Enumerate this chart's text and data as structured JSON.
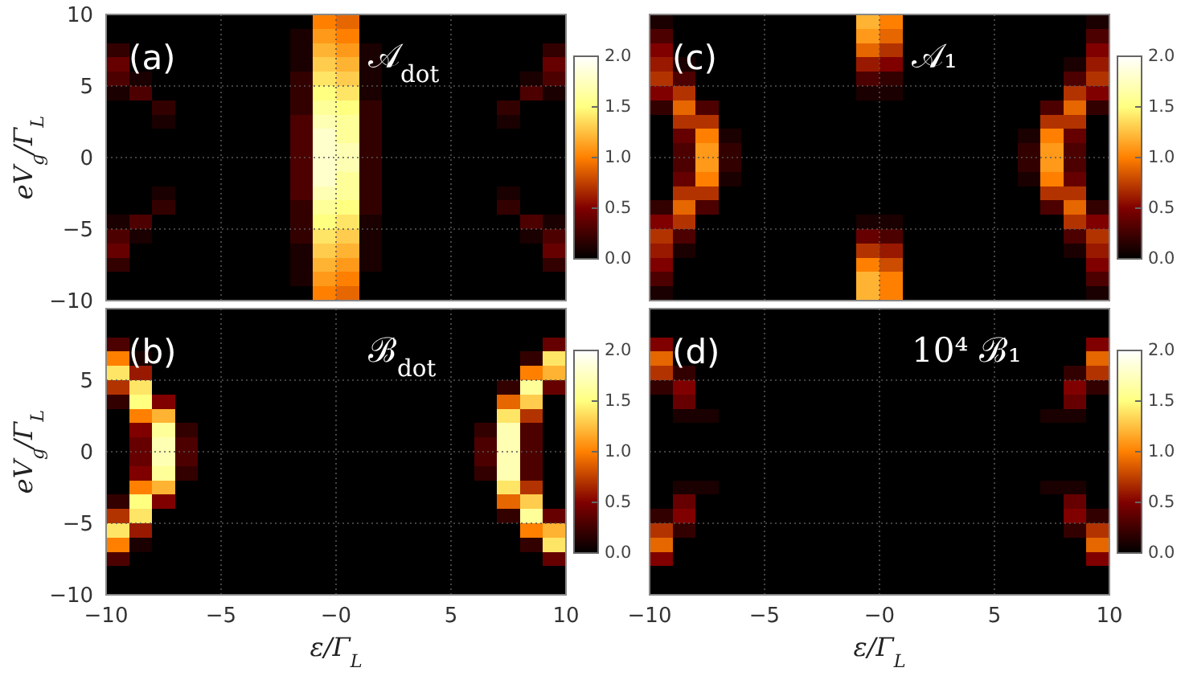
{
  "chart_data": [
    {
      "type": "heatmap",
      "title": "𝒜$_{dot}$",
      "annotations": [
        "(a)"
      ],
      "ylabel": "eV$_{g}$/Γ$_{L}$",
      "x": [
        -9.5,
        -8.5,
        -7.5,
        -6.5,
        -5.5,
        -4.5,
        -3.5,
        -2.5,
        -1.5,
        -0.5,
        0.5,
        1.5,
        2.5,
        3.5,
        4.5,
        5.5,
        6.5,
        7.5,
        8.5,
        9.5
      ],
      "cells": [
        [
          0,
          0,
          0,
          0,
          0,
          0,
          0,
          0,
          0,
          1.0,
          0.9,
          0,
          0,
          0,
          0,
          0,
          0,
          0,
          0,
          0
        ],
        [
          0,
          0,
          0,
          0,
          0,
          0,
          0,
          0,
          0.1,
          1.1,
          1.0,
          0,
          0,
          0,
          0,
          0,
          0,
          0,
          0,
          0
        ],
        [
          0.2,
          0,
          0,
          0,
          0,
          0,
          0,
          0,
          0.1,
          1.2,
          1.1,
          0.1,
          0,
          0,
          0,
          0,
          0,
          0,
          0,
          0.2
        ],
        [
          0.4,
          0,
          0,
          0,
          0,
          0,
          0,
          0,
          0.1,
          1.3,
          1.2,
          0.1,
          0,
          0,
          0,
          0,
          0,
          0,
          0,
          0.4
        ],
        [
          0.3,
          0.1,
          0,
          0,
          0,
          0,
          0,
          0,
          0.2,
          1.4,
          1.3,
          0.1,
          0,
          0,
          0,
          0,
          0,
          0,
          0.1,
          0.3
        ],
        [
          0.1,
          0.3,
          0,
          0,
          0,
          0,
          0,
          0,
          0.2,
          1.5,
          1.4,
          0.1,
          0,
          0,
          0,
          0,
          0,
          0,
          0.3,
          0.1
        ],
        [
          0,
          0,
          0.2,
          0,
          0,
          0,
          0,
          0,
          0.2,
          1.6,
          1.5,
          0.2,
          0,
          0,
          0,
          0,
          0,
          0.2,
          0,
          0
        ],
        [
          0,
          0,
          0.1,
          0,
          0,
          0,
          0,
          0,
          0.3,
          1.7,
          1.6,
          0.2,
          0,
          0,
          0,
          0,
          0,
          0.1,
          0,
          0
        ],
        [
          0,
          0,
          0,
          0,
          0,
          0,
          0,
          0,
          0.3,
          1.8,
          1.6,
          0.2,
          0,
          0,
          0,
          0,
          0,
          0,
          0,
          0
        ],
        [
          0,
          0,
          0,
          0,
          0,
          0,
          0,
          0,
          0.3,
          1.8,
          1.7,
          0.2,
          0,
          0,
          0,
          0,
          0,
          0,
          0,
          0
        ],
        [
          0,
          0,
          0,
          0,
          0,
          0,
          0,
          0,
          0.3,
          1.8,
          1.7,
          0.2,
          0,
          0,
          0,
          0,
          0,
          0,
          0,
          0
        ],
        [
          0,
          0,
          0,
          0,
          0,
          0,
          0,
          0,
          0.3,
          1.8,
          1.6,
          0.2,
          0,
          0,
          0,
          0,
          0,
          0,
          0,
          0
        ],
        [
          0,
          0,
          0.1,
          0,
          0,
          0,
          0,
          0,
          0.3,
          1.7,
          1.6,
          0.2,
          0,
          0,
          0,
          0,
          0,
          0.1,
          0,
          0
        ],
        [
          0,
          0,
          0.2,
          0,
          0,
          0,
          0,
          0,
          0.2,
          1.6,
          1.5,
          0.2,
          0,
          0,
          0,
          0,
          0,
          0.2,
          0,
          0
        ],
        [
          0.1,
          0.3,
          0,
          0,
          0,
          0,
          0,
          0,
          0.2,
          1.5,
          1.4,
          0.1,
          0,
          0,
          0,
          0,
          0,
          0,
          0.3,
          0.1
        ],
        [
          0.3,
          0.1,
          0,
          0,
          0,
          0,
          0,
          0,
          0.2,
          1.4,
          1.3,
          0.1,
          0,
          0,
          0,
          0,
          0,
          0,
          0.1,
          0.3
        ],
        [
          0.4,
          0,
          0,
          0,
          0,
          0,
          0,
          0,
          0.1,
          1.3,
          1.2,
          0.1,
          0,
          0,
          0,
          0,
          0,
          0,
          0,
          0.4
        ],
        [
          0.2,
          0,
          0,
          0,
          0,
          0,
          0,
          0,
          0.1,
          1.2,
          1.1,
          0.1,
          0,
          0,
          0,
          0,
          0,
          0,
          0,
          0.2
        ],
        [
          0,
          0,
          0,
          0,
          0,
          0,
          0,
          0,
          0.1,
          1.1,
          1.0,
          0,
          0,
          0,
          0,
          0,
          0,
          0,
          0,
          0
        ],
        [
          0,
          0,
          0,
          0,
          0,
          0,
          0,
          0,
          0,
          1.0,
          0.9,
          0,
          0,
          0,
          0,
          0,
          0,
          0,
          0,
          0
        ]
      ],
      "clim": [
        0,
        2
      ],
      "cticks": [
        {
          "value": 0,
          "label": "0.0"
        },
        {
          "value": 0.5,
          "label": "0.5"
        },
        {
          "value": 1,
          "label": "1.0"
        },
        {
          "value": 1.5,
          "label": "1.5"
        },
        {
          "value": 2,
          "label": "2.0"
        }
      ],
      "xlim": [
        -10,
        10
      ],
      "xticks": [
        -10,
        -5,
        0,
        5,
        10
      ],
      "ylim": [
        -10,
        10
      ],
      "yticks": [
        -10,
        -5,
        0,
        5,
        10
      ],
      "grid": true,
      "tick_labels": "y"
    },
    {
      "type": "heatmap",
      "title": "𝒜₁",
      "annotations": [
        "(c)"
      ],
      "x": [
        -9.5,
        -8.5,
        -7.5,
        -6.5,
        -5.5,
        -4.5,
        -3.5,
        -2.5,
        -1.5,
        -0.5,
        0.5,
        1.5,
        2.5,
        3.5,
        4.5,
        5.5,
        6.5,
        7.5,
        8.5,
        9.5
      ],
      "cells": [
        [
          0.1,
          0,
          0,
          0,
          0,
          0,
          0,
          0,
          0,
          1.2,
          1.0,
          0,
          0,
          0,
          0,
          0,
          0,
          0,
          0,
          0.1
        ],
        [
          0.3,
          0,
          0,
          0,
          0,
          0,
          0,
          0,
          0,
          1.1,
          0.9,
          0,
          0,
          0,
          0,
          0,
          0,
          0,
          0,
          0.3
        ],
        [
          0.5,
          0,
          0,
          0,
          0,
          0,
          0,
          0,
          0,
          0.9,
          0.7,
          0,
          0,
          0,
          0,
          0,
          0,
          0,
          0,
          0.5
        ],
        [
          0.6,
          0.1,
          0,
          0,
          0,
          0,
          0,
          0,
          0,
          0.6,
          0.5,
          0,
          0,
          0,
          0,
          0,
          0,
          0,
          0.1,
          0.6
        ],
        [
          0.7,
          0.3,
          0,
          0,
          0,
          0,
          0,
          0,
          0,
          0.3,
          0.2,
          0,
          0,
          0,
          0,
          0,
          0,
          0,
          0.3,
          0.7
        ],
        [
          0.5,
          0.7,
          0,
          0,
          0,
          0,
          0,
          0,
          0,
          0.1,
          0.1,
          0,
          0,
          0,
          0,
          0,
          0,
          0,
          0.7,
          0.5
        ],
        [
          0.2,
          0.9,
          0.3,
          0,
          0,
          0,
          0,
          0,
          0,
          0,
          0,
          0,
          0,
          0,
          0,
          0,
          0,
          0.3,
          0.9,
          0.2
        ],
        [
          0,
          0.7,
          0.7,
          0,
          0,
          0,
          0,
          0,
          0,
          0,
          0,
          0,
          0,
          0,
          0,
          0,
          0,
          0.7,
          0.7,
          0
        ],
        [
          0,
          0.4,
          1.0,
          0.1,
          0,
          0,
          0,
          0,
          0,
          0,
          0,
          0,
          0,
          0,
          0,
          0,
          0.1,
          1.0,
          0.4,
          0
        ],
        [
          0,
          0.3,
          1.1,
          0.2,
          0,
          0,
          0,
          0,
          0,
          0,
          0,
          0,
          0,
          0,
          0,
          0,
          0.2,
          1.1,
          0.3,
          0
        ],
        [
          0,
          0.3,
          1.1,
          0.2,
          0,
          0,
          0,
          0,
          0,
          0,
          0,
          0,
          0,
          0,
          0,
          0,
          0.2,
          1.1,
          0.3,
          0
        ],
        [
          0,
          0.4,
          1.0,
          0.1,
          0,
          0,
          0,
          0,
          0,
          0,
          0,
          0,
          0,
          0,
          0,
          0,
          0.1,
          1.0,
          0.4,
          0
        ],
        [
          0,
          0.7,
          0.7,
          0,
          0,
          0,
          0,
          0,
          0,
          0,
          0,
          0,
          0,
          0,
          0,
          0,
          0,
          0.7,
          0.7,
          0
        ],
        [
          0.2,
          0.9,
          0.3,
          0,
          0,
          0,
          0,
          0,
          0,
          0,
          0,
          0,
          0,
          0,
          0,
          0,
          0,
          0.3,
          0.9,
          0.2
        ],
        [
          0.5,
          0.7,
          0,
          0,
          0,
          0,
          0,
          0,
          0,
          0.1,
          0.1,
          0,
          0,
          0,
          0,
          0,
          0,
          0,
          0.7,
          0.5
        ],
        [
          0.7,
          0.3,
          0,
          0,
          0,
          0,
          0,
          0,
          0,
          0.4,
          0.3,
          0,
          0,
          0,
          0,
          0,
          0,
          0,
          0.3,
          0.7
        ],
        [
          0.6,
          0.1,
          0,
          0,
          0,
          0,
          0,
          0,
          0,
          0.7,
          0.6,
          0,
          0,
          0,
          0,
          0,
          0,
          0,
          0.1,
          0.6
        ],
        [
          0.5,
          0,
          0,
          0,
          0,
          0,
          0,
          0,
          0,
          1.0,
          0.8,
          0,
          0,
          0,
          0,
          0,
          0,
          0,
          0,
          0.5
        ],
        [
          0.3,
          0,
          0,
          0,
          0,
          0,
          0,
          0,
          0,
          1.2,
          1.0,
          0,
          0,
          0,
          0,
          0,
          0,
          0,
          0,
          0.3
        ],
        [
          0.1,
          0,
          0,
          0,
          0,
          0,
          0,
          0,
          0,
          1.2,
          1.0,
          0,
          0,
          0,
          0,
          0,
          0,
          0,
          0,
          0.1
        ]
      ],
      "clim": [
        0,
        2
      ],
      "cticks": [
        {
          "value": 0,
          "label": "0.0"
        },
        {
          "value": 0.5,
          "label": "0.5"
        },
        {
          "value": 1,
          "label": "1.0"
        },
        {
          "value": 1.5,
          "label": "1.5"
        },
        {
          "value": 2,
          "label": "2.0"
        }
      ],
      "xlim": [
        -10,
        10
      ],
      "xticks": [
        -10,
        -5,
        0,
        5,
        10
      ],
      "ylim": [
        -10,
        10
      ],
      "yticks": [
        -10,
        -5,
        0,
        5,
        10
      ],
      "grid": true,
      "tick_labels": false
    },
    {
      "type": "heatmap",
      "title": "ℬ$_{dot}$",
      "annotations": [
        "(b)"
      ],
      "xlabel": "ε/Γ$_{L}$",
      "ylabel": "eV$_{g}$/Γ$_{L}$",
      "x": [
        -9.5,
        -8.5,
        -7.5,
        -6.5,
        -5.5,
        -4.5,
        -3.5,
        -2.5,
        -1.5,
        -0.5,
        0.5,
        1.5,
        2.5,
        3.5,
        4.5,
        5.5,
        6.5,
        7.5,
        8.5,
        9.5
      ],
      "cells": [
        [
          0,
          0,
          0,
          0,
          0,
          0,
          0,
          0,
          0,
          0,
          0,
          0,
          0,
          0,
          0,
          0,
          0,
          0,
          0,
          0
        ],
        [
          0,
          0,
          0,
          0,
          0,
          0,
          0,
          0,
          0,
          0,
          0,
          0,
          0,
          0,
          0,
          0,
          0,
          0,
          0,
          0
        ],
        [
          0.3,
          0,
          0,
          0,
          0,
          0,
          0,
          0,
          0,
          0,
          0,
          0,
          0,
          0,
          0,
          0,
          0,
          0,
          0,
          0.4
        ],
        [
          1.0,
          0.1,
          0,
          0,
          0,
          0,
          0,
          0,
          0,
          0,
          0,
          0,
          0,
          0,
          0,
          0,
          0,
          0,
          0.2,
          1.4
        ],
        [
          1.4,
          0.6,
          0,
          0,
          0,
          0,
          0,
          0,
          0,
          0,
          0,
          0,
          0,
          0,
          0,
          0,
          0,
          0,
          1.0,
          1.2
        ],
        [
          0.7,
          1.4,
          0,
          0,
          0,
          0,
          0,
          0,
          0,
          0,
          0,
          0,
          0,
          0,
          0,
          0,
          0,
          0.2,
          1.6,
          0.4
        ],
        [
          0.2,
          1.5,
          0.5,
          0,
          0,
          0,
          0,
          0,
          0,
          0,
          0,
          0,
          0,
          0,
          0,
          0,
          0,
          0.9,
          1.3,
          0
        ],
        [
          0,
          1.0,
          1.2,
          0,
          0,
          0,
          0,
          0,
          0,
          0,
          0,
          0,
          0,
          0,
          0,
          0,
          0,
          1.4,
          0.7,
          0
        ],
        [
          0,
          0.5,
          1.6,
          0.2,
          0,
          0,
          0,
          0,
          0,
          0,
          0,
          0,
          0,
          0,
          0,
          0,
          0.2,
          1.7,
          0.3,
          0
        ],
        [
          0,
          0.4,
          1.7,
          0.3,
          0,
          0,
          0,
          0,
          0,
          0,
          0,
          0,
          0,
          0,
          0,
          0,
          0.3,
          1.7,
          0.3,
          0
        ],
        [
          0,
          0.4,
          1.7,
          0.3,
          0,
          0,
          0,
          0,
          0,
          0,
          0,
          0,
          0,
          0,
          0,
          0,
          0.3,
          1.7,
          0.3,
          0
        ],
        [
          0,
          0.5,
          1.6,
          0.2,
          0,
          0,
          0,
          0,
          0,
          0,
          0,
          0,
          0,
          0,
          0,
          0,
          0.2,
          1.7,
          0.3,
          0
        ],
        [
          0,
          1.0,
          1.2,
          0,
          0,
          0,
          0,
          0,
          0,
          0,
          0,
          0,
          0,
          0,
          0,
          0,
          0,
          1.4,
          0.7,
          0
        ],
        [
          0.2,
          1.5,
          0.5,
          0,
          0,
          0,
          0,
          0,
          0,
          0,
          0,
          0,
          0,
          0,
          0,
          0,
          0,
          0.9,
          1.3,
          0
        ],
        [
          0.7,
          1.4,
          0,
          0,
          0,
          0,
          0,
          0,
          0,
          0,
          0,
          0,
          0,
          0,
          0,
          0,
          0,
          0.2,
          1.6,
          0.4
        ],
        [
          1.4,
          0.6,
          0,
          0,
          0,
          0,
          0,
          0,
          0,
          0,
          0,
          0,
          0,
          0,
          0,
          0,
          0,
          0,
          1.0,
          1.2
        ],
        [
          1.0,
          0.1,
          0,
          0,
          0,
          0,
          0,
          0,
          0,
          0,
          0,
          0,
          0,
          0,
          0,
          0,
          0,
          0,
          0.2,
          1.4
        ],
        [
          0.3,
          0,
          0,
          0,
          0,
          0,
          0,
          0,
          0,
          0,
          0,
          0,
          0,
          0,
          0,
          0,
          0,
          0,
          0,
          0.4
        ],
        [
          0,
          0,
          0,
          0,
          0,
          0,
          0,
          0,
          0,
          0,
          0,
          0,
          0,
          0,
          0,
          0,
          0,
          0,
          0,
          0
        ],
        [
          0,
          0,
          0,
          0,
          0,
          0,
          0,
          0,
          0,
          0,
          0,
          0,
          0,
          0,
          0,
          0,
          0,
          0,
          0,
          0
        ]
      ],
      "clim": [
        0,
        2
      ],
      "cticks": [
        {
          "value": 0,
          "label": "0.0"
        },
        {
          "value": 0.5,
          "label": "0.5"
        },
        {
          "value": 1,
          "label": "1.0"
        },
        {
          "value": 1.5,
          "label": "1.5"
        },
        {
          "value": 2,
          "label": "2.0"
        }
      ],
      "xlim": [
        -10,
        10
      ],
      "xticks": [
        -10,
        -5,
        {
          "value": 0,
          "label": "−0"
        },
        5,
        10
      ],
      "ylim": [
        -10,
        10
      ],
      "yticks": [
        -10,
        -5,
        0,
        5
      ],
      "grid": true
    },
    {
      "type": "heatmap",
      "title": "10⁴ ℬ₁",
      "annotations": [
        "(d)"
      ],
      "xlabel": "ε/Γ$_{L}$",
      "x": [
        -9.5,
        -8.5,
        -7.5,
        -6.5,
        -5.5,
        -4.5,
        -3.5,
        -2.5,
        -1.5,
        -0.5,
        0.5,
        1.5,
        2.5,
        3.5,
        4.5,
        5.5,
        6.5,
        7.5,
        8.5,
        9.5
      ],
      "cells": [
        [
          0,
          0,
          0,
          0,
          0,
          0,
          0,
          0,
          0,
          0,
          0,
          0,
          0,
          0,
          0,
          0,
          0,
          0,
          0,
          0
        ],
        [
          0,
          0,
          0,
          0,
          0,
          0,
          0,
          0,
          0,
          0,
          0,
          0,
          0,
          0,
          0,
          0,
          0,
          0,
          0,
          0
        ],
        [
          0.5,
          0,
          0,
          0,
          0,
          0,
          0,
          0,
          0,
          0,
          0,
          0,
          0,
          0,
          0,
          0,
          0,
          0,
          0,
          0.5
        ],
        [
          0.9,
          0,
          0,
          0,
          0,
          0,
          0,
          0,
          0,
          0,
          0,
          0,
          0,
          0,
          0,
          0,
          0,
          0,
          0,
          0.9
        ],
        [
          0.7,
          0.2,
          0,
          0,
          0,
          0,
          0,
          0,
          0,
          0,
          0,
          0,
          0,
          0,
          0,
          0,
          0,
          0,
          0.2,
          0.7
        ],
        [
          0.2,
          0.5,
          0,
          0,
          0,
          0,
          0,
          0,
          0,
          0,
          0,
          0,
          0,
          0,
          0,
          0,
          0,
          0,
          0.5,
          0.2
        ],
        [
          0,
          0.4,
          0,
          0,
          0,
          0,
          0,
          0,
          0,
          0,
          0,
          0,
          0,
          0,
          0,
          0,
          0,
          0,
          0.4,
          0
        ],
        [
          0,
          0.1,
          0.1,
          0,
          0,
          0,
          0,
          0,
          0,
          0,
          0,
          0,
          0,
          0,
          0,
          0,
          0,
          0.1,
          0.1,
          0
        ],
        [
          0,
          0,
          0,
          0,
          0,
          0,
          0,
          0,
          0,
          0,
          0,
          0,
          0,
          0,
          0,
          0,
          0,
          0,
          0,
          0
        ],
        [
          0,
          0,
          0,
          0,
          0,
          0,
          0,
          0,
          0,
          0,
          0,
          0,
          0,
          0,
          0,
          0,
          0,
          0,
          0,
          0
        ],
        [
          0,
          0,
          0,
          0,
          0,
          0,
          0,
          0,
          0,
          0,
          0,
          0,
          0,
          0,
          0,
          0,
          0,
          0,
          0,
          0
        ],
        [
          0,
          0,
          0,
          0,
          0,
          0,
          0,
          0,
          0,
          0,
          0,
          0,
          0,
          0,
          0,
          0,
          0,
          0,
          0,
          0
        ],
        [
          0,
          0.1,
          0.1,
          0,
          0,
          0,
          0,
          0,
          0,
          0,
          0,
          0,
          0,
          0,
          0,
          0,
          0,
          0.1,
          0.1,
          0
        ],
        [
          0,
          0.4,
          0,
          0,
          0,
          0,
          0,
          0,
          0,
          0,
          0,
          0,
          0,
          0,
          0,
          0,
          0,
          0,
          0.4,
          0
        ],
        [
          0.2,
          0.5,
          0,
          0,
          0,
          0,
          0,
          0,
          0,
          0,
          0,
          0,
          0,
          0,
          0,
          0,
          0,
          0,
          0.5,
          0.2
        ],
        [
          0.7,
          0.2,
          0,
          0,
          0,
          0,
          0,
          0,
          0,
          0,
          0,
          0,
          0,
          0,
          0,
          0,
          0,
          0,
          0.2,
          0.7
        ],
        [
          0.9,
          0,
          0,
          0,
          0,
          0,
          0,
          0,
          0,
          0,
          0,
          0,
          0,
          0,
          0,
          0,
          0,
          0,
          0,
          0.9
        ],
        [
          0.5,
          0,
          0,
          0,
          0,
          0,
          0,
          0,
          0,
          0,
          0,
          0,
          0,
          0,
          0,
          0,
          0,
          0,
          0,
          0.5
        ],
        [
          0,
          0,
          0,
          0,
          0,
          0,
          0,
          0,
          0,
          0,
          0,
          0,
          0,
          0,
          0,
          0,
          0,
          0,
          0,
          0
        ],
        [
          0,
          0,
          0,
          0,
          0,
          0,
          0,
          0,
          0,
          0,
          0,
          0,
          0,
          0,
          0,
          0,
          0,
          0,
          0,
          0
        ]
      ],
      "clim": [
        0,
        2
      ],
      "cticks": [
        {
          "value": 0,
          "label": "0.0"
        },
        {
          "value": 0.5,
          "label": "0.5"
        },
        {
          "value": 1,
          "label": "1.0"
        },
        {
          "value": 1.5,
          "label": "1.5"
        },
        {
          "value": 2,
          "label": "2.0"
        }
      ],
      "xlim": [
        -10,
        10
      ],
      "xticks": [
        -10,
        -5,
        {
          "value": 0,
          "label": "−0"
        },
        5,
        10
      ],
      "ylim": [
        -10,
        10
      ],
      "yticks": [
        -10,
        -5,
        0,
        5,
        10
      ],
      "grid": true,
      "tick_labels": "x"
    }
  ]
}
